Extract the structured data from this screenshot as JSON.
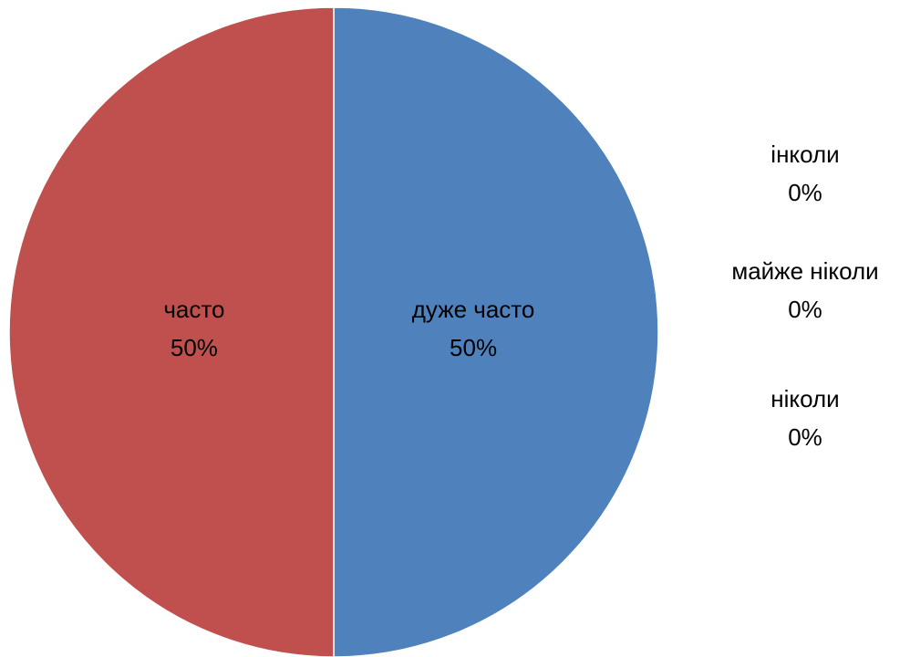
{
  "chart_data": {
    "type": "pie",
    "categories": [
      "дуже часто",
      "часто",
      "інколи",
      "майже ніколи",
      "ніколи"
    ],
    "values": [
      50,
      50,
      0,
      0,
      0
    ],
    "value_labels": [
      "50%",
      "50%",
      "0%",
      "0%",
      "0%"
    ],
    "colors": [
      "#4F81BD",
      "#C0504D",
      "#9BBB59",
      "#8064A2",
      "#4BACC6"
    ],
    "start_angle_deg": 0,
    "direction": "clockwise",
    "legend": "none"
  }
}
